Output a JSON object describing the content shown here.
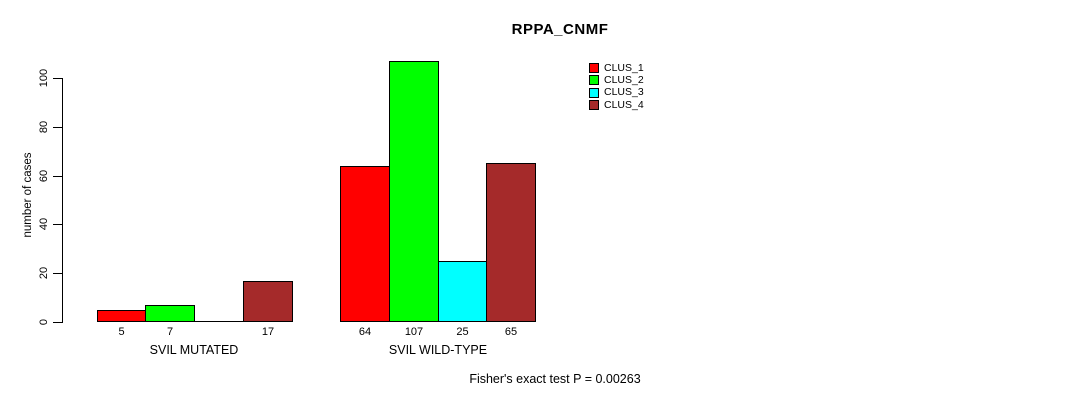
{
  "title": "RPPA_CNMF",
  "y_axis": {
    "label": "number of cases",
    "ticks": [
      0,
      20,
      40,
      60,
      80,
      100
    ]
  },
  "legend": {
    "items": [
      {
        "label": "CLUS_1",
        "color": "#ff0000"
      },
      {
        "label": "CLUS_2",
        "color": "#00ff00"
      },
      {
        "label": "CLUS_3",
        "color": "#00ffff"
      },
      {
        "label": "CLUS_4",
        "color": "#a52a2a"
      }
    ]
  },
  "footer": {
    "text": "Fisher's exact test P = 0.00263"
  },
  "chart_data": {
    "type": "bar",
    "title": "RPPA_CNMF",
    "ylabel": "number of cases",
    "categories": [
      "SVIL MUTATED",
      "SVIL WILD-TYPE"
    ],
    "series": [
      {
        "name": "CLUS_1",
        "color": "#ff0000",
        "values": [
          5,
          64
        ]
      },
      {
        "name": "CLUS_2",
        "color": "#00ff00",
        "values": [
          7,
          107
        ]
      },
      {
        "name": "CLUS_3",
        "color": "#00ffff",
        "values": [
          0,
          25
        ]
      },
      {
        "name": "CLUS_4",
        "color": "#a52a2a",
        "values": [
          17,
          65
        ]
      }
    ],
    "bar_value_labels": [
      [
        "5",
        "7",
        "",
        "17"
      ],
      [
        "64",
        "107",
        "25",
        "65"
      ]
    ],
    "yticks": [
      0,
      20,
      40,
      60,
      80,
      100
    ],
    "ylim": [
      0,
      100
    ],
    "grid": false,
    "legend_position": "top-right",
    "legend_entries": [
      "CLUS_1",
      "CLUS_2",
      "CLUS_3",
      "CLUS_4"
    ],
    "annotation": "Fisher's exact test P = 0.00263"
  }
}
